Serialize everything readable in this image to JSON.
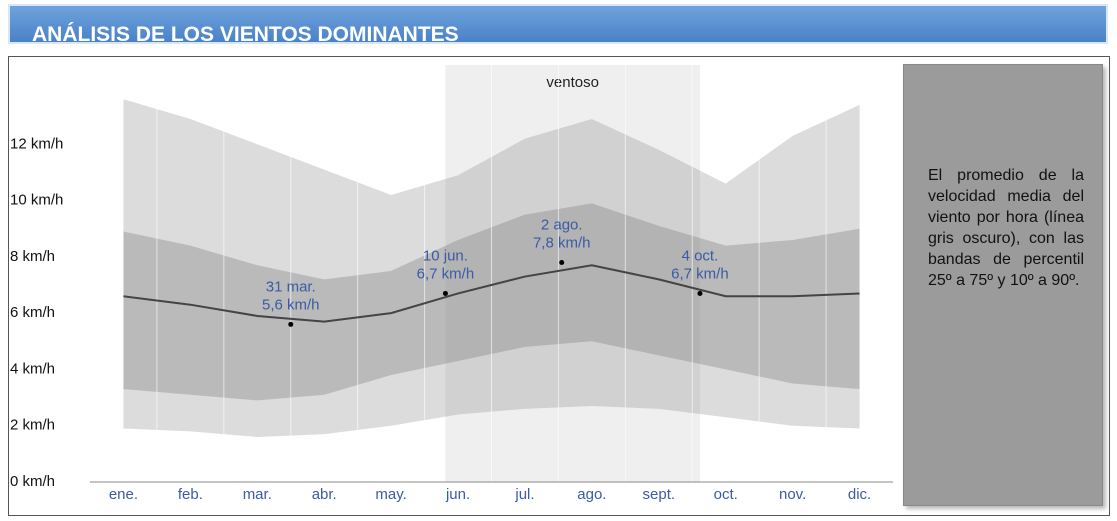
{
  "header": {
    "title": "ANÁLISIS DE LOS VIENTOS DOMINANTES"
  },
  "chart_data": {
    "type": "band_line",
    "categories": [
      "ene.",
      "feb.",
      "mar.",
      "abr.",
      "may.",
      "jun.",
      "jul.",
      "ago.",
      "sept.",
      "oct.",
      "nov.",
      "dic."
    ],
    "ylim": [
      0,
      14
    ],
    "yticks": [
      {
        "value": 0,
        "label": "0 km/h"
      },
      {
        "value": 2,
        "label": "2 km/h"
      },
      {
        "value": 4,
        "label": "4 km/h"
      },
      {
        "value": 6,
        "label": "6 km/h"
      },
      {
        "value": 8,
        "label": "8 km/h"
      },
      {
        "value": 10,
        "label": "10 km/h"
      },
      {
        "value": 12,
        "label": "12 km/h"
      }
    ],
    "bands": [
      {
        "color": "#9a9a9a",
        "low": [
          1.9,
          1.8,
          1.6,
          1.7,
          2.0,
          2.4,
          2.6,
          2.7,
          2.6,
          2.3,
          2.0,
          1.9
        ],
        "high": [
          13.6,
          12.9,
          12.0,
          11.1,
          10.2,
          10.9,
          12.2,
          12.9,
          11.8,
          10.6,
          12.3,
          13.4
        ]
      },
      {
        "color": "#7a7a7a",
        "low": [
          3.3,
          3.1,
          2.9,
          3.1,
          3.8,
          4.3,
          4.8,
          5.0,
          4.5,
          4.0,
          3.5,
          3.3
        ],
        "high": [
          8.9,
          8.4,
          7.7,
          7.2,
          7.5,
          8.6,
          9.5,
          9.9,
          9.1,
          8.4,
          8.6,
          9.0
        ]
      }
    ],
    "line": {
      "color": "#444444",
      "values": [
        6.6,
        6.3,
        5.9,
        5.7,
        6.0,
        6.7,
        7.3,
        7.7,
        7.2,
        6.6,
        6.6,
        6.7
      ]
    },
    "region_label": "ventoso",
    "annotations": [
      {
        "date": "31 mar.",
        "value": 5.6,
        "value_label": "5,6 km/h"
      },
      {
        "date": "10 jun.",
        "value": 6.7,
        "value_label": "6,7 km/h"
      },
      {
        "date": "2 ago.",
        "value": 7.8,
        "value_label": "7,8 km/h"
      },
      {
        "date": "4 oct.",
        "value": 6.7,
        "value_label": "6,7 km/h"
      }
    ]
  },
  "side_note": "El promedio de la velocidad media del viento por hora (línea gris oscuro), con las bandas de percentil 25º a 75º y 10º a 90º."
}
